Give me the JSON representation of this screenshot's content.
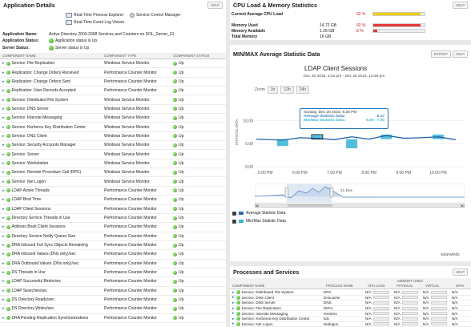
{
  "app_details": {
    "title": "Application Details",
    "help": "HELP",
    "tools": [
      "Real-Time Process Explorer",
      "Service Control Manager",
      "Real-Time Event Log Viewer"
    ],
    "app_name_label": "Application Name:",
    "app_name": "Active Directory 2003-2008 Services and Counters on SOL_Server_01",
    "app_status_label": "Application Status:",
    "app_status": "Application status is Up",
    "server_status_label": "Server Status:",
    "server_status": "Server status is Up",
    "headers": [
      "COMPONENT NAME",
      "COMPONENT TYPE",
      "COMPONENT STATUS"
    ],
    "rows": [
      [
        "Service: File Replication",
        "Windows Service Monitor",
        "Up"
      ],
      [
        "Replication: Change Orders Received",
        "Performance Counter Monitor",
        "Up"
      ],
      [
        "Replication: Change Orders Sent",
        "Performance Counter Monitor",
        "Up"
      ],
      [
        "Replication: User Records Accepted",
        "Performance Counter Monitor",
        "Up"
      ],
      [
        "Service: Distributed File System",
        "Windows Service Monitor",
        "Up"
      ],
      [
        "Service: DNS Server",
        "Windows Service Monitor",
        "Up"
      ],
      [
        "Service: Intersite Messaging",
        "Windows Service Monitor",
        "Up"
      ],
      [
        "Service: Kerberos Key Distribution Center",
        "Windows Service Monitor",
        "Up"
      ],
      [
        "Service: DNS Client",
        "Windows Service Monitor",
        "Up"
      ],
      [
        "Service: Security Accounts Manager",
        "Windows Service Monitor",
        "Up"
      ],
      [
        "Service: Server",
        "Windows Service Monitor",
        "Up"
      ],
      [
        "Service: Workstation",
        "Windows Service Monitor",
        "Up"
      ],
      [
        "Service: Remote Procedure Call (RPC)",
        "Windows Service Monitor",
        "Up"
      ],
      [
        "Service: Net Logon",
        "Windows Service Monitor",
        "Up"
      ],
      [
        "LDAP Active Threads",
        "Performance Counter Monitor",
        "Up"
      ],
      [
        "LDAP Bind Time",
        "Performance Counter Monitor",
        "Up"
      ],
      [
        "LDAP Client Sessions",
        "Performance Counter Monitor",
        "Up"
      ],
      [
        "Directory Service Threads in Use",
        "Performance Counter Monitor",
        "Up"
      ],
      [
        "Address Book Client Sessions",
        "Performance Counter Monitor",
        "Up"
      ],
      [
        "Directory Service Notify Queue Size",
        "Performance Counter Monitor",
        "Up"
      ],
      [
        "DRA Inbound Full Sync Objects Remaining",
        "Performance Counter Monitor",
        "Up"
      ],
      [
        "DRA Inbound Values (DNs only)/sec",
        "Performance Counter Monitor",
        "Up"
      ],
      [
        "DRA Outbound Values (DNs only)/sec",
        "Performance Counter Monitor",
        "Up"
      ],
      [
        "DS Threads in Use",
        "Performance Counter Monitor",
        "Up"
      ],
      [
        "LDAP Successful Binds/sec",
        "Performance Counter Monitor",
        "Up"
      ],
      [
        "LDAP Searches/sec",
        "Performance Counter Monitor",
        "Up"
      ],
      [
        "DS Directory Reads/sec",
        "Performance Counter Monitor",
        "Up"
      ],
      [
        "DS Directory Writes/sec",
        "Performance Counter Monitor",
        "Up"
      ],
      [
        "DRA Pending Replication Synchronizations",
        "Performance Counter Monitor",
        "Up"
      ]
    ]
  },
  "cpu": {
    "title": "CPU Load & Memory Statistics",
    "help": "HELP",
    "rows": [
      {
        "label": "Current Average CPU Load",
        "value": "",
        "pct": "92 %",
        "level": 0.92,
        "color": "#f0d000"
      },
      {
        "label": "Memory Used",
        "value": "14.72 GB",
        "pct": "92 %",
        "level": 0.92,
        "color": "#e23a3a"
      },
      {
        "label": "Memory Available",
        "value": "1.28 GB",
        "pct": "8 %",
        "level": 0.08,
        "color": "#e23a3a"
      },
      {
        "label": "Total Memory",
        "value": "16 GB",
        "pct": "",
        "level": 0,
        "color": "#e23a3a"
      }
    ]
  },
  "minmax": {
    "title": "MIN/MAX Average Statistic Data",
    "export": "EXPORT",
    "help": "HELP",
    "chart_title": "LDAP Client Sessions",
    "chart_subtitle": "Dec 20 2015, 4:43 pm - Dec 20 2015, 10:46 pm",
    "zoom_label": "Zoom",
    "zoom_tabs": [
      "1h",
      "12h",
      "24h"
    ],
    "tooltip": {
      "time": "Sunday, Dec 20 2015, 6:30 PM",
      "avg_label": "Average Statistic Data:",
      "avg_value": "6.17",
      "mm_label": "Min/Max Statistic Data:",
      "mm_value": "6.00 - 7.00"
    },
    "nav_date": "21 Dec",
    "legend": [
      "Average Statistic Data",
      "Min/Max Statistic Data"
    ],
    "brand": "solarwinds"
  },
  "chart_data": {
    "type": "line",
    "title": "LDAP Client Sessions",
    "ylabel": "STATISTIC DATA",
    "ylim": [
      0,
      15
    ],
    "yticks": [
      0,
      5,
      10
    ],
    "xticks": [
      "5:00 PM",
      "6:00 PM",
      "7:00 PM",
      "8:00 PM",
      "9:00 PM",
      "10:00 PM"
    ],
    "series": [
      {
        "name": "Average Statistic Data",
        "x": [
          "4:45 PM",
          "5:30 PM",
          "6:00 PM",
          "6:30 PM",
          "7:00 PM",
          "7:30 PM",
          "8:00 PM",
          "8:30 PM",
          "9:00 PM",
          "9:30 PM",
          "10:00 PM",
          "10:30 PM"
        ],
        "values": [
          6.0,
          5.8,
          6.3,
          6.17,
          5.9,
          6.5,
          6.0,
          6.8,
          6.2,
          6.3,
          6.5,
          5.9
        ]
      },
      {
        "name": "Min/Max Statistic Data",
        "ranges": [
          [
            "5:30 PM",
            4.5,
            6.0
          ],
          [
            "6:30 PM",
            6.0,
            7.0
          ],
          [
            "7:30 PM",
            4.0,
            6.0
          ],
          [
            "8:30 PM",
            6.0,
            7.0
          ],
          [
            "10:00 PM",
            6.0,
            7.0
          ]
        ]
      }
    ]
  },
  "processes": {
    "title": "Processes and Services",
    "help": "HELP",
    "headers": [
      "COMPONENT NAME",
      "PROCESS NAME",
      "CPU LOAD",
      "PHYSICAL",
      "VIRTUAL",
      "IOPS"
    ],
    "mem_header": "MEMORY USED",
    "rows": [
      [
        "Service: Distributed File System",
        "DFS",
        "N/A",
        "N/A",
        "N/A",
        "N/A"
      ],
      [
        "Service: DNS Client",
        "Dnscache",
        "N/A",
        "N/A",
        "N/A",
        "N/A"
      ],
      [
        "Service: DNS Server",
        "DNS",
        "N/A",
        "N/A",
        "N/A",
        "N/A"
      ],
      [
        "Service: File Replication",
        "NtFrs",
        "N/A",
        "N/A",
        "N/A",
        "N/A"
      ],
      [
        "Service: Intersite Messaging",
        "IsmServ",
        "N/A",
        "N/A",
        "N/A",
        "N/A"
      ],
      [
        "Service: Kerberos Key Distribution Center",
        "kdc",
        "N/A",
        "N/A",
        "N/A",
        "N/A"
      ],
      [
        "Service: Net Logon",
        "Netlogon",
        "N/A",
        "N/A",
        "N/A",
        "N/A"
      ]
    ]
  }
}
